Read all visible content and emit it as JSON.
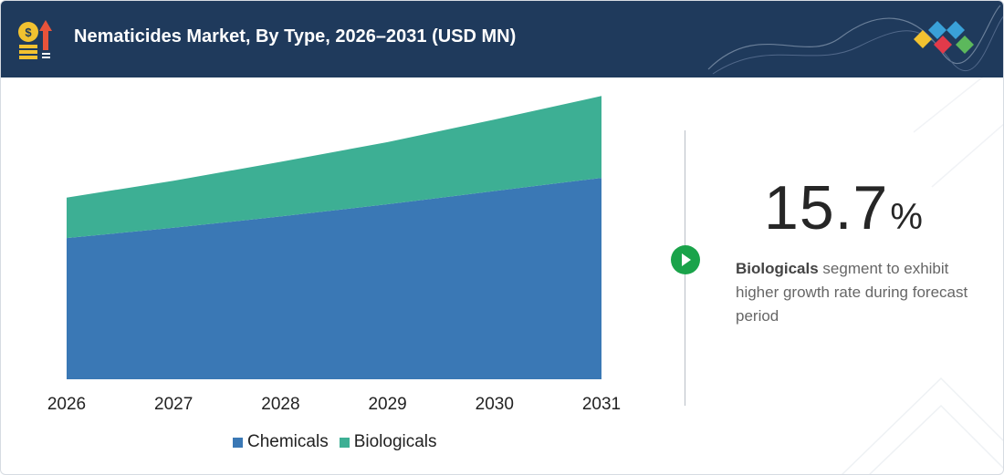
{
  "header": {
    "title": "Nematicides Market, By Type, 2026–2031 (USD MN)",
    "icon": "money-growth-icon",
    "logo": "diamond-logo"
  },
  "highlight": {
    "value": "15.7",
    "unit": "%",
    "segment": "Biologicals",
    "text": "segment to exhibit higher growth rate during forecast period"
  },
  "colors": {
    "header_bg": "#1f3a5c",
    "chemicals": "#3a78b5",
    "biologicals": "#3daf94",
    "accent_green": "#1aa34a"
  },
  "chart_data": {
    "type": "area",
    "stacked": true,
    "x": [
      "2026",
      "2027",
      "2028",
      "2029",
      "2030",
      "2031"
    ],
    "series": [
      {
        "name": "Chemicals",
        "values": [
          150,
          161,
          173,
          186,
          200,
          214
        ]
      },
      {
        "name": "Biologicals",
        "values": [
          43,
          50,
          58,
          66,
          76,
          87
        ]
      }
    ],
    "ylim": [
      0,
      310
    ],
    "grid": false,
    "legend": "bottom"
  }
}
